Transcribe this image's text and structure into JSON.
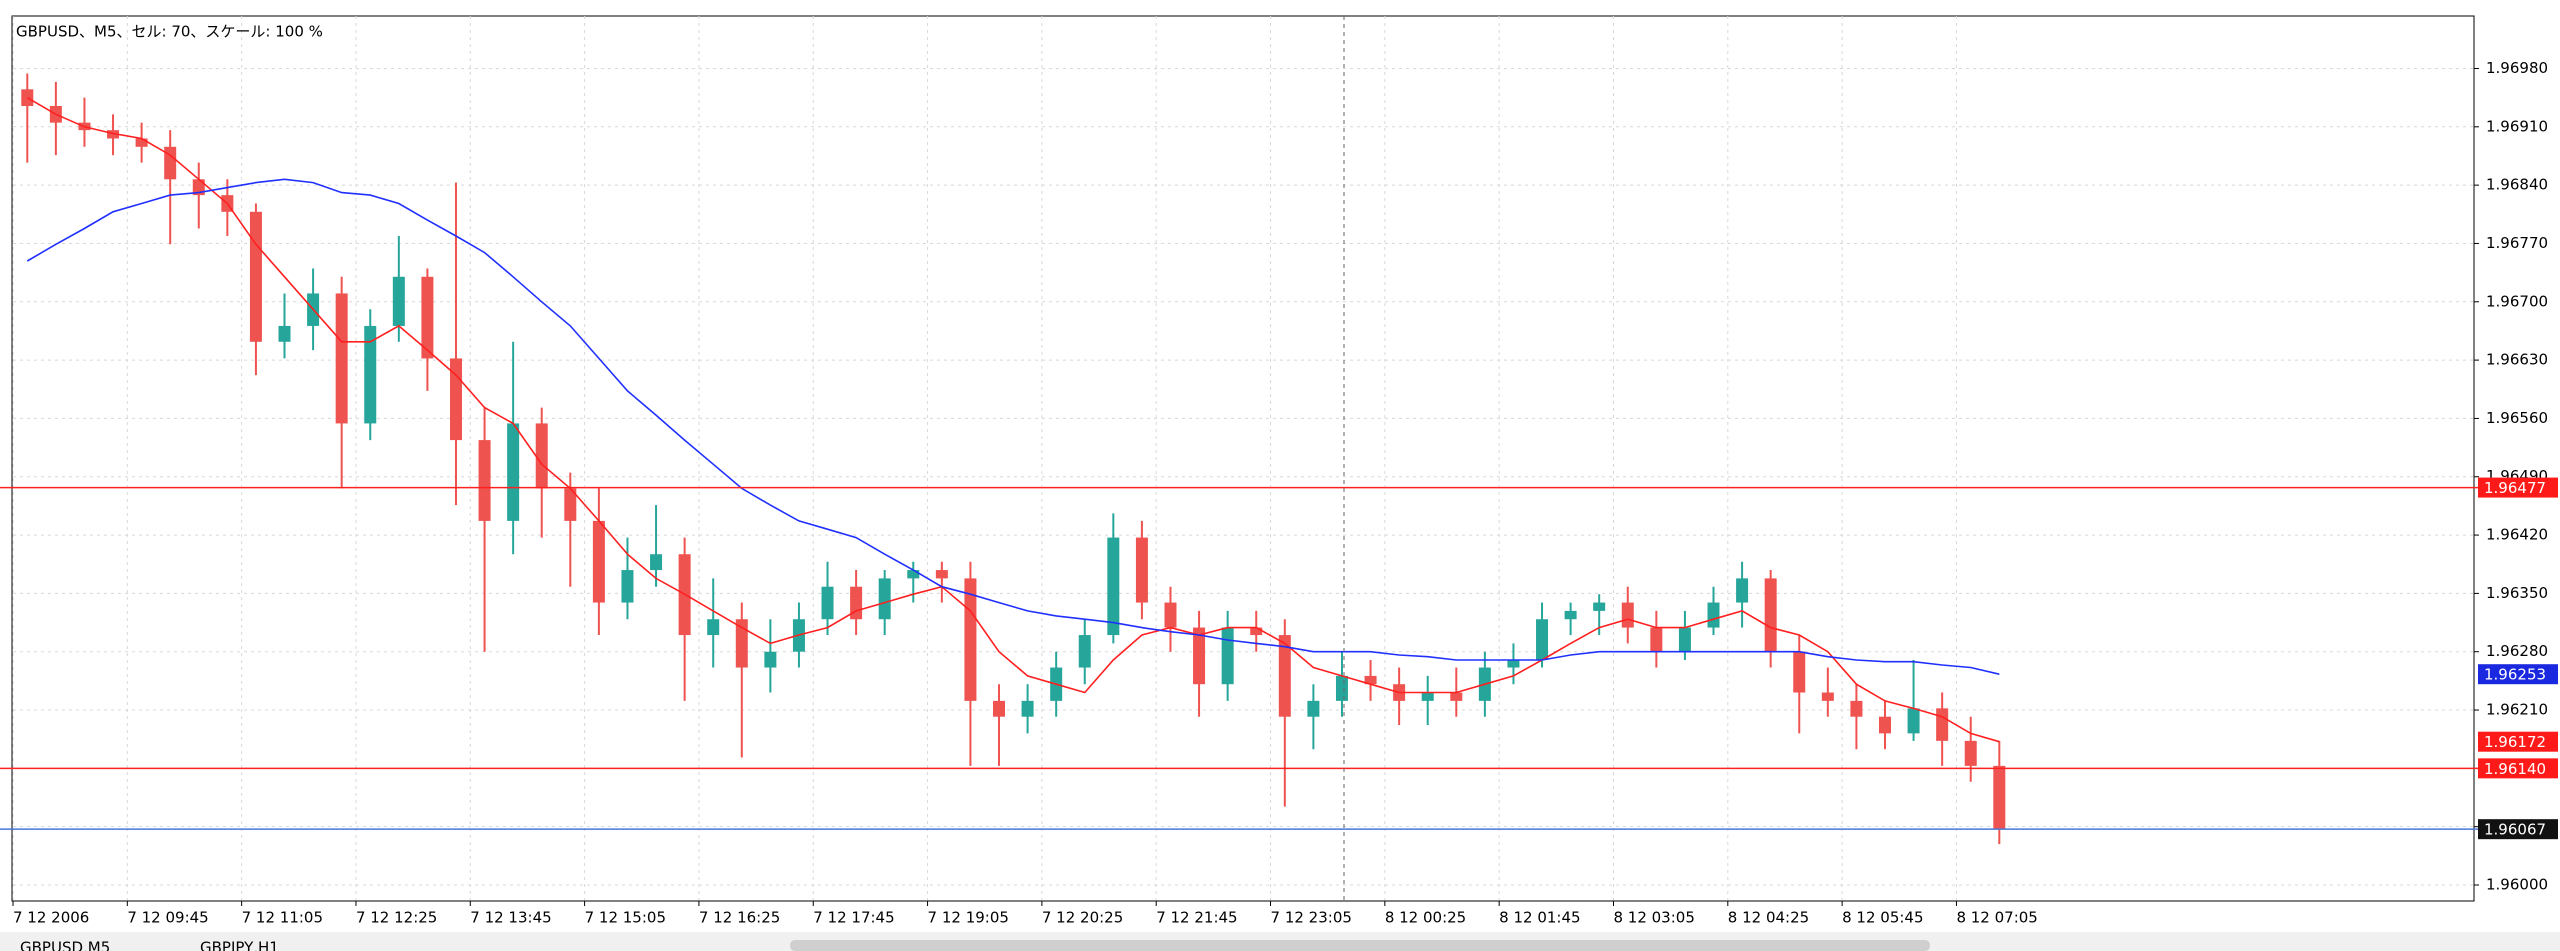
{
  "chart_data": {
    "type": "candlestick",
    "title": "GBPUSD、M5、セル: 70、スケール: 100 %",
    "categories": [
      "7 12 2006",
      null,
      null,
      null,
      "7 12 09:45",
      null,
      null,
      null,
      "7 12 11:05",
      null,
      null,
      null,
      "7 12 12:25",
      null,
      null,
      null,
      "7 12 13:45",
      null,
      null,
      null,
      "7 12 15:05",
      null,
      null,
      null,
      "7 12 16:25",
      null,
      null,
      null,
      "7 12 17:45",
      null,
      null,
      null,
      "7 12 19:05",
      null,
      null,
      null,
      "7 12 20:25",
      null,
      null,
      null,
      "7 12 21:45",
      null,
      null,
      null,
      "7 12 23:05",
      null,
      null,
      null,
      "8 12 00:25",
      null,
      null,
      null,
      "8 12 01:45",
      null,
      null,
      null,
      "8 12 03:05",
      null,
      null,
      null,
      "8 12 04:25",
      null,
      null,
      null,
      "8 12 05:45",
      null,
      null,
      null,
      "8 12 07:05",
      null
    ],
    "ohlc": [
      [
        1.96955,
        1.96974,
        1.96867,
        1.96935
      ],
      [
        1.96935,
        1.96964,
        1.96876,
        1.96915
      ],
      [
        1.96915,
        1.96945,
        1.96886,
        1.96906
      ],
      [
        1.96906,
        1.96925,
        1.96876,
        1.96896
      ],
      [
        1.96896,
        1.96915,
        1.96867,
        1.96886
      ],
      [
        1.96886,
        1.96906,
        1.96769,
        1.96847
      ],
      [
        1.96847,
        1.96867,
        1.96788,
        1.96828
      ],
      [
        1.96828,
        1.96847,
        1.96779,
        1.96808
      ],
      [
        1.96808,
        1.96818,
        1.96612,
        1.96652
      ],
      [
        1.96652,
        1.9671,
        1.96632,
        1.96671
      ],
      [
        1.96671,
        1.9674,
        1.96642,
        1.9671
      ],
      [
        1.9671,
        1.9673,
        1.96476,
        1.96554
      ],
      [
        1.96554,
        1.96691,
        1.96534,
        1.96671
      ],
      [
        1.96671,
        1.96779,
        1.96652,
        1.9673
      ],
      [
        1.9673,
        1.9674,
        1.96593,
        1.96632
      ],
      [
        1.96632,
        1.96843,
        1.96456,
        1.96534
      ],
      [
        1.96534,
        1.96573,
        1.9628,
        1.96437
      ],
      [
        1.96437,
        1.96652,
        1.96397,
        1.96554
      ],
      [
        1.96554,
        1.96573,
        1.96417,
        1.96476
      ],
      [
        1.96476,
        1.96495,
        1.96358,
        1.96437
      ],
      [
        1.96437,
        1.96476,
        1.963,
        1.96339
      ],
      [
        1.96339,
        1.96417,
        1.96319,
        1.96378
      ],
      [
        1.96378,
        1.96456,
        1.96358,
        1.96397
      ],
      [
        1.96397,
        1.96417,
        1.96221,
        1.963
      ],
      [
        1.963,
        1.96368,
        1.96261,
        1.96319
      ],
      [
        1.96319,
        1.96339,
        1.96153,
        1.96261
      ],
      [
        1.96261,
        1.96319,
        1.96231,
        1.9628
      ],
      [
        1.9628,
        1.96339,
        1.96261,
        1.96319
      ],
      [
        1.96319,
        1.96388,
        1.963,
        1.96358
      ],
      [
        1.96358,
        1.96378,
        1.963,
        1.96319
      ],
      [
        1.96319,
        1.96378,
        1.963,
        1.96368
      ],
      [
        1.96368,
        1.96388,
        1.96339,
        1.96378
      ],
      [
        1.96378,
        1.96388,
        1.96339,
        1.96368
      ],
      [
        1.96368,
        1.96388,
        1.96143,
        1.96221
      ],
      [
        1.96221,
        1.96241,
        1.96143,
        1.96202
      ],
      [
        1.96202,
        1.96241,
        1.96182,
        1.96221
      ],
      [
        1.96221,
        1.9628,
        1.96202,
        1.96261
      ],
      [
        1.96261,
        1.96319,
        1.96241,
        1.963
      ],
      [
        1.963,
        1.96446,
        1.9629,
        1.96417
      ],
      [
        1.96417,
        1.96437,
        1.96319,
        1.96339
      ],
      [
        1.96339,
        1.96358,
        1.9628,
        1.96309
      ],
      [
        1.96309,
        1.96329,
        1.96202,
        1.96241
      ],
      [
        1.96241,
        1.96329,
        1.96221,
        1.96309
      ],
      [
        1.96309,
        1.96329,
        1.9628,
        1.963
      ],
      [
        1.963,
        1.96319,
        1.96094,
        1.96202
      ],
      [
        1.96202,
        1.96241,
        1.96163,
        1.96221
      ],
      [
        1.96221,
        1.9628,
        1.96202,
        1.96251
      ],
      [
        1.96251,
        1.9627,
        1.96221,
        1.96241
      ],
      [
        1.96241,
        1.96261,
        1.96192,
        1.96221
      ],
      [
        1.96221,
        1.96251,
        1.96192,
        1.96231
      ],
      [
        1.96231,
        1.96261,
        1.96202,
        1.96221
      ],
      [
        1.96221,
        1.9628,
        1.96202,
        1.96261
      ],
      [
        1.96261,
        1.9629,
        1.96241,
        1.9627
      ],
      [
        1.9627,
        1.96339,
        1.96261,
        1.96319
      ],
      [
        1.96319,
        1.96339,
        1.963,
        1.96329
      ],
      [
        1.96329,
        1.96349,
        1.963,
        1.96339
      ],
      [
        1.96339,
        1.96358,
        1.9629,
        1.96309
      ],
      [
        1.96309,
        1.96329,
        1.96261,
        1.9628
      ],
      [
        1.9628,
        1.96329,
        1.9627,
        1.96309
      ],
      [
        1.96309,
        1.96358,
        1.963,
        1.96339
      ],
      [
        1.96339,
        1.96388,
        1.96309,
        1.96368
      ],
      [
        1.96368,
        1.96378,
        1.96261,
        1.9628
      ],
      [
        1.9628,
        1.963,
        1.96182,
        1.96231
      ],
      [
        1.96231,
        1.96261,
        1.96202,
        1.96221
      ],
      [
        1.96221,
        1.96241,
        1.96163,
        1.96202
      ],
      [
        1.96202,
        1.96221,
        1.96163,
        1.96182
      ],
      [
        1.96182,
        1.9627,
        1.96173,
        1.96212
      ],
      [
        1.96212,
        1.96231,
        1.96143,
        1.96173
      ],
      [
        1.96173,
        1.96202,
        1.96124,
        1.96143
      ],
      [
        1.96143,
        1.96173,
        1.96049,
        1.96067
      ]
    ],
    "up_color": "#26a69a",
    "down_color": "#ef5350",
    "lines": [
      {
        "color": "#ff2020",
        "tag_color": "#ff1a1a",
        "values": [
          1.96945,
          1.96925,
          1.9691,
          1.96902,
          1.96896,
          1.96876,
          1.96847,
          1.96818,
          1.96769,
          1.9673,
          1.96691,
          1.96652,
          1.96652,
          1.96671,
          1.96642,
          1.96612,
          1.96573,
          1.96554,
          1.96505,
          1.96476,
          1.96437,
          1.96397,
          1.96368,
          1.96349,
          1.96329,
          1.96309,
          1.9629,
          1.963,
          1.96309,
          1.96329,
          1.96339,
          1.96349,
          1.96358,
          1.96329,
          1.9628,
          1.96251,
          1.96241,
          1.96231,
          1.9627,
          1.963,
          1.96309,
          1.963,
          1.96309,
          1.96309,
          1.9629,
          1.96261,
          1.96251,
          1.96241,
          1.96231,
          1.96231,
          1.96231,
          1.96241,
          1.96251,
          1.9627,
          1.9629,
          1.96309,
          1.96319,
          1.96309,
          1.96309,
          1.96319,
          1.96329,
          1.96309,
          1.963,
          1.9628,
          1.96241,
          1.96221,
          1.96212,
          1.96202,
          1.96182,
          1.96172
        ]
      },
      {
        "color": "#2030ff",
        "tag_color": "#1a28e0",
        "values": [
          1.96749,
          1.96769,
          1.96788,
          1.96808,
          1.96818,
          1.96828,
          1.96831,
          1.96837,
          1.96843,
          1.96847,
          1.96843,
          1.96831,
          1.96828,
          1.96818,
          1.96798,
          1.96779,
          1.96759,
          1.9673,
          1.967,
          1.96671,
          1.96632,
          1.96593,
          1.96564,
          1.96534,
          1.96505,
          1.96476,
          1.96456,
          1.96437,
          1.96427,
          1.96417,
          1.96397,
          1.96378,
          1.96358,
          1.96349,
          1.96339,
          1.96329,
          1.96323,
          1.96319,
          1.96315,
          1.96309,
          1.96304,
          1.963,
          1.96294,
          1.9629,
          1.96286,
          1.9628,
          1.9628,
          1.9628,
          1.96276,
          1.96274,
          1.9627,
          1.9627,
          1.9627,
          1.9627,
          1.96276,
          1.9628,
          1.9628,
          1.9628,
          1.9628,
          1.9628,
          1.9628,
          1.9628,
          1.9628,
          1.96274,
          1.9627,
          1.96268,
          1.96268,
          1.96264,
          1.96261,
          1.96253
        ]
      }
    ],
    "levels": [
      {
        "value": 1.96477,
        "label": "1.96477",
        "color": "#ff2020",
        "tag_color": "#ff1a1a"
      },
      {
        "value": 1.9614,
        "label": "1.96140",
        "color": "#ff2020",
        "tag_color": "#ff1a1a"
      },
      {
        "value": 1.96067,
        "label": "1.96067",
        "color": "#4a78d8",
        "tag_color": "#111111"
      }
    ],
    "ylim": [
      1.95982,
      1.97043
    ],
    "yticks": [
      {
        "value": 1.9698,
        "label": "1.96980"
      },
      {
        "value": 1.9691,
        "label": "1.96910"
      },
      {
        "value": 1.9684,
        "label": "1.96840"
      },
      {
        "value": 1.9677,
        "label": "1.96770"
      },
      {
        "value": 1.967,
        "label": "1.96700"
      },
      {
        "value": 1.9663,
        "label": "1.96630"
      },
      {
        "value": 1.9656,
        "label": "1.96560"
      },
      {
        "value": 1.9649,
        "label": "1.96490"
      },
      {
        "value": 1.9642,
        "label": "1.96420"
      },
      {
        "value": 1.9635,
        "label": "1.96350"
      },
      {
        "value": 1.9628,
        "label": "1.96280"
      },
      {
        "value": 1.9621,
        "label": "1.96210"
      },
      {
        "value": 1.9614,
        "label": "1.96140"
      },
      {
        "value": 1.9607,
        "label": "1.96070"
      },
      {
        "value": 1.96,
        "label": "1.96000"
      }
    ],
    "grid": true
  },
  "tabs": [
    "GBPUSD,M5",
    "GBPJPY,H1"
  ]
}
